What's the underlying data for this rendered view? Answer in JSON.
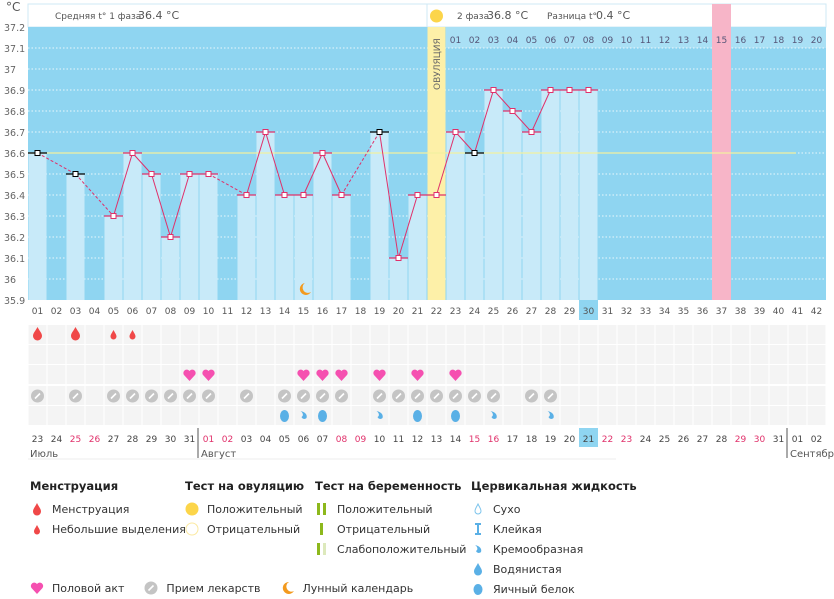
{
  "header": {
    "unit": "°C",
    "phase1_label": "Средняя t° 1 фаза",
    "phase1_value": "36.4 °C",
    "phase2_label": "2 фаза",
    "phase2_value": "36.8 °C",
    "diff_label": "Разница t°",
    "diff_value": "0.4 °C",
    "ovulation_label": "ОВУЛЯЦИЯ"
  },
  "colors": {
    "plot_bg": "#8fd5f1",
    "bar": "#c8eaf9",
    "line": "#e0306a",
    "ovulation": "#fdf0a8",
    "highlight_day": "#f7b5c8",
    "today": "#8fd5f1",
    "weekend": "#e0306a",
    "coverline": "#f2f0a0"
  },
  "chart_data": {
    "type": "line",
    "ylabel": "°C",
    "ylim": [
      35.9,
      37.2
    ],
    "yticks": [
      "37.2",
      "37.1",
      "37",
      "36.9",
      "36.8",
      "36.7",
      "36.6",
      "36.5",
      "36.4",
      "36.3",
      "36.2",
      "36.1",
      "36",
      "35.9"
    ],
    "cycle_days": [
      "01",
      "02",
      "03",
      "04",
      "05",
      "06",
      "07",
      "08",
      "09",
      "10",
      "11",
      "12",
      "13",
      "14",
      "15",
      "16",
      "17",
      "18",
      "19",
      "20",
      "21",
      "22",
      "23",
      "24",
      "25",
      "26",
      "27",
      "28",
      "29",
      "30",
      "31",
      "32",
      "33",
      "34",
      "35",
      "36",
      "37",
      "38",
      "39",
      "40",
      "41",
      "42"
    ],
    "temperatures": [
      36.6,
      null,
      36.5,
      null,
      36.3,
      36.6,
      36.5,
      36.2,
      36.5,
      36.5,
      null,
      36.4,
      36.7,
      36.4,
      36.4,
      36.6,
      36.4,
      null,
      36.7,
      36.1,
      36.4,
      36.4,
      36.7,
      36.6,
      36.9,
      36.8,
      36.7,
      36.9,
      36.9,
      36.9,
      null,
      null,
      null,
      null,
      null,
      null,
      null,
      null,
      null,
      null,
      null,
      null
    ],
    "excluded_days": [
      1,
      3,
      19,
      24
    ],
    "coverline": 36.6,
    "ovulation_day": 22,
    "today_day": 30,
    "highlight_day": 37,
    "luteal_days": [
      "01",
      "02",
      "03",
      "04",
      "05",
      "06",
      "07",
      "08",
      "09",
      "10",
      "11",
      "12",
      "13",
      "14",
      "15",
      "16",
      "17",
      "18",
      "19",
      "20"
    ],
    "moon_day": 15,
    "menstruation": {
      "heavy": [
        1,
        3
      ],
      "spotting": [
        5,
        6
      ]
    },
    "intercourse": [
      9,
      10,
      15,
      16,
      17,
      19,
      21,
      23
    ],
    "medication": [
      1,
      3,
      5,
      6,
      7,
      8,
      9,
      10,
      12,
      14,
      15,
      16,
      17,
      19,
      20,
      21,
      22,
      23,
      24,
      25,
      27,
      28
    ],
    "cervical_fluid": {
      "egg_white": [
        14,
        16,
        21,
        23
      ],
      "creamy": [
        15,
        19,
        25,
        28
      ]
    },
    "dates": [
      "23",
      "24",
      "25",
      "26",
      "27",
      "28",
      "29",
      "30",
      "31",
      "01",
      "02",
      "03",
      "04",
      "05",
      "06",
      "07",
      "08",
      "09",
      "10",
      "11",
      "12",
      "13",
      "14",
      "15",
      "16",
      "17",
      "18",
      "19",
      "20",
      "21",
      "22",
      "23",
      "24",
      "25",
      "26",
      "27",
      "28",
      "29",
      "30",
      "31",
      "01",
      "02"
    ],
    "weekend_days": [
      3,
      4,
      10,
      11,
      17,
      18,
      24,
      25,
      31,
      32,
      38,
      39
    ],
    "months": [
      {
        "label": "Июль",
        "start": 1
      },
      {
        "label": "Август",
        "start": 10
      },
      {
        "label": "Сентябр",
        "start": 41
      }
    ]
  },
  "legend": {
    "menstruation": {
      "title": "Менструация",
      "items": [
        "Менструация",
        "Небольшие выделения"
      ]
    },
    "ovulation_test": {
      "title": "Тест на овуляцию",
      "items": [
        "Положительный",
        "Отрицательный"
      ]
    },
    "pregnancy_test": {
      "title": "Тест на беременность",
      "items": [
        "Положительный",
        "Отрицательный",
        "Слабоположительный"
      ]
    },
    "cervical": {
      "title": "Цервикальная жидкость",
      "items": [
        "Сухо",
        "Клейкая",
        "Кремообразная",
        "Водянистая",
        "Яичный белок"
      ]
    },
    "other": [
      "Половой акт",
      "Прием лекарств",
      "Лунный календарь"
    ]
  }
}
